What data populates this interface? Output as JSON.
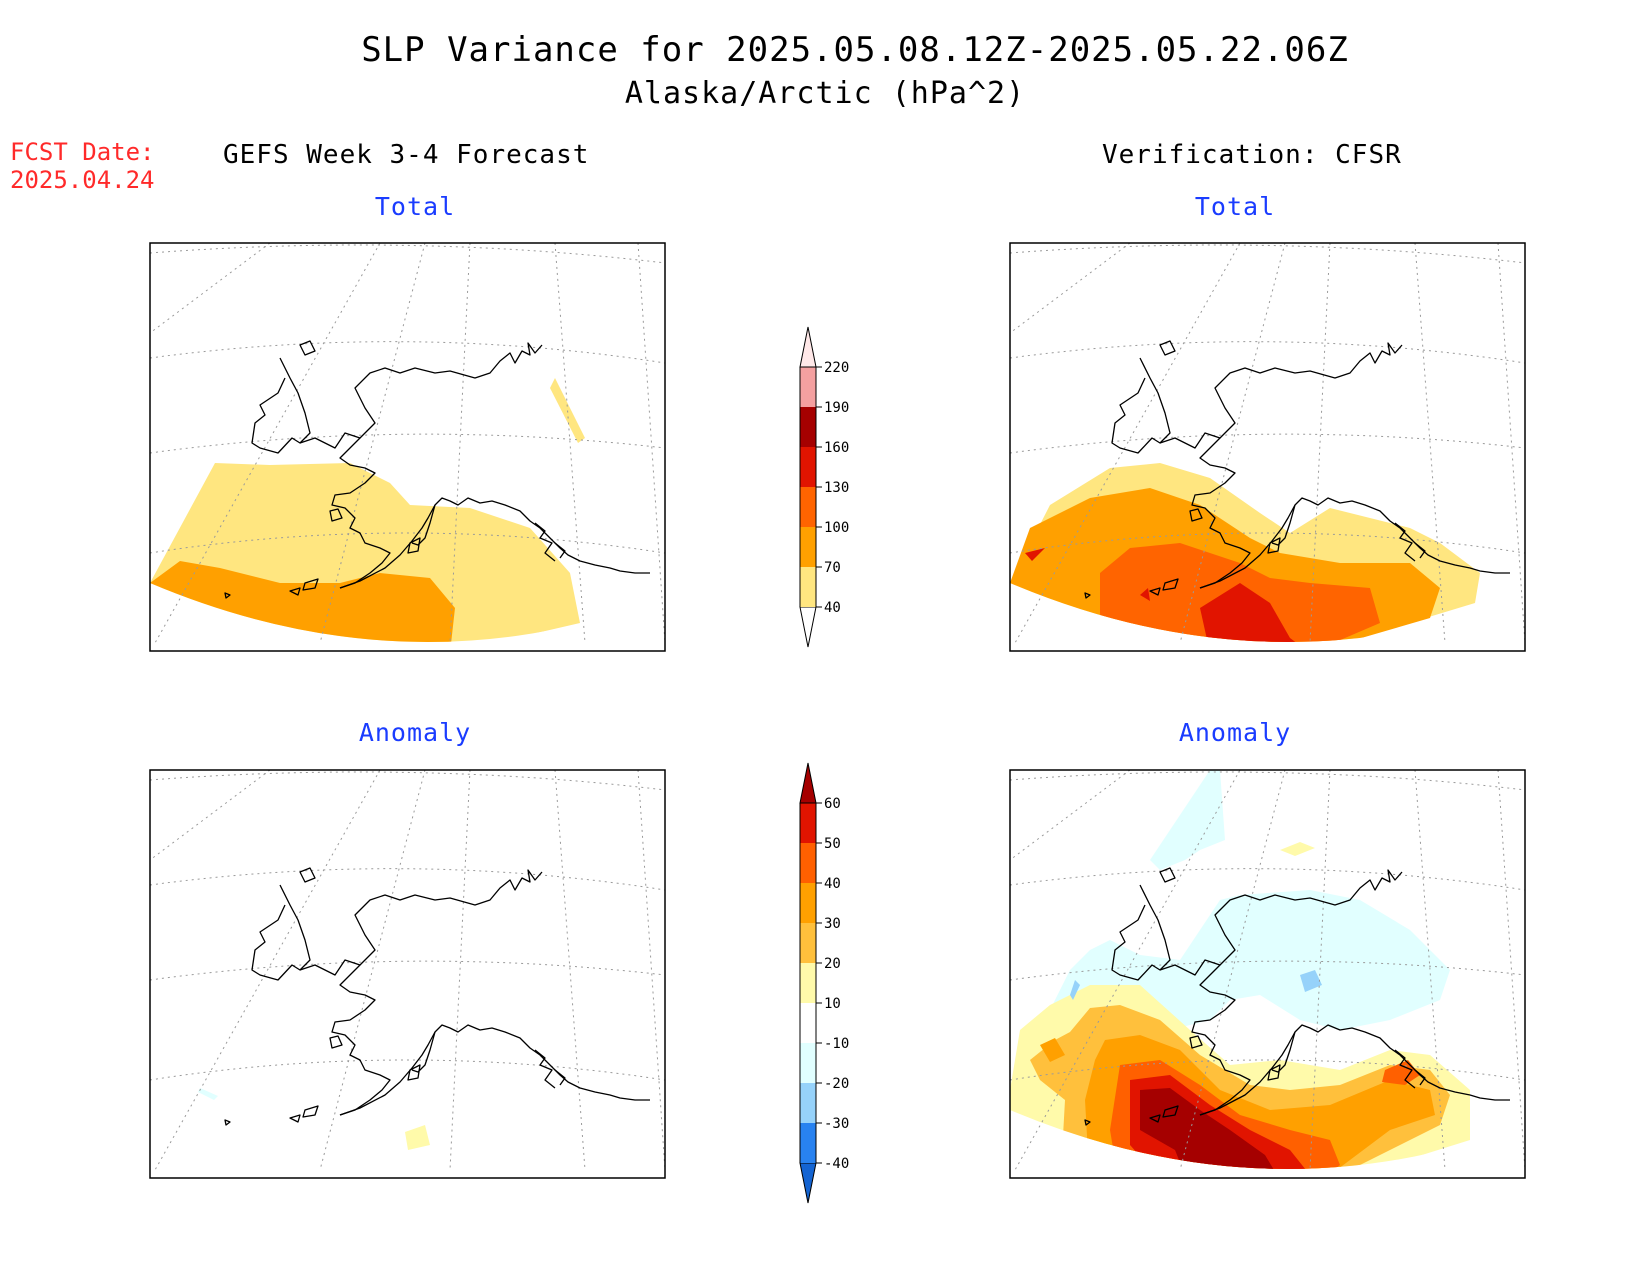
{
  "title": {
    "line1": "SLP Variance for 2025.05.08.12Z-2025.05.22.06Z",
    "line2": "Alaska/Arctic (hPa^2)"
  },
  "forecast_date": {
    "label": "FCST Date:",
    "value": "2025.04.24"
  },
  "columns": {
    "left": "GEFS Week 3-4 Forecast",
    "right": "Verification: CFSR"
  },
  "panels": [
    {
      "id": "fcst-total",
      "subtitle": "Total"
    },
    {
      "id": "verif-total",
      "subtitle": "Total"
    },
    {
      "id": "fcst-anomaly",
      "subtitle": "Anomaly"
    },
    {
      "id": "verif-anomaly",
      "subtitle": "Anomaly"
    }
  ],
  "colorbars": {
    "total": {
      "labels": [
        "40",
        "70",
        "100",
        "130",
        "160",
        "190",
        "220"
      ],
      "colors": [
        "#ffe680",
        "#ffa000",
        "#ff6400",
        "#e11400",
        "#a50000",
        "#f4a0a0",
        "#ffe8e8"
      ]
    },
    "anomaly": {
      "labels": [
        "-40",
        "-30",
        "-20",
        "-10",
        "10",
        "20",
        "30",
        "40",
        "50",
        "60"
      ],
      "colors": [
        "#1464d2",
        "#2882f0",
        "#96d2fa",
        "#e1ffff",
        "#ffffff",
        "#fffaaa",
        "#ffc03c",
        "#ffa000",
        "#ff6000",
        "#e11400",
        "#a50000"
      ]
    }
  }
}
